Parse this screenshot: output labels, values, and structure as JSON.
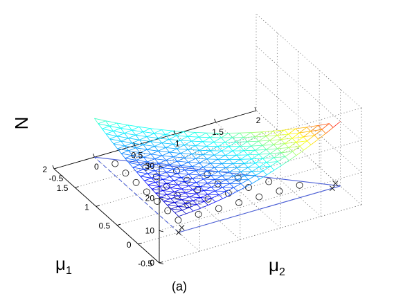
{
  "chart_data": {
    "type": "surface3d",
    "xlabel": "μ",
    "xlabel_sub": "1",
    "ylabel": "μ",
    "ylabel_sub": "2",
    "zlabel": "N",
    "caption": "(a)",
    "x_ticks": [
      "-0.5",
      "0",
      "0.5",
      "1",
      "1.5",
      "2"
    ],
    "y_ticks": [
      "-0.5",
      "0",
      "0.5",
      "1",
      "1.5",
      "2"
    ],
    "z_ticks": [
      "0",
      "10",
      "20",
      "30"
    ],
    "xlim": [
      -0.5,
      2
    ],
    "ylim": [
      -0.5,
      2
    ],
    "zlim": [
      0,
      30
    ],
    "grid": true,
    "surface": {
      "colormap": "jet",
      "domain": "triangle 0 <= mu1 <= 2, 0 <= mu2 <= 2 - mu1",
      "corner_values": [
        {
          "mu1": 0,
          "mu2": 0,
          "N": 5
        },
        {
          "mu1": 0,
          "mu2": 2,
          "N": 20
        },
        {
          "mu1": 2,
          "mu2": 0,
          "N": 12
        }
      ]
    },
    "circle_points": [
      {
        "mu1": 0.25,
        "mu2": 0.125
      },
      {
        "mu1": 0.25,
        "mu2": 0.375
      },
      {
        "mu1": 0.25,
        "mu2": 0.625
      },
      {
        "mu1": 0.25,
        "mu2": 0.875
      },
      {
        "mu1": 0.25,
        "mu2": 1.125
      },
      {
        "mu1": 0.25,
        "mu2": 1.375
      },
      {
        "mu1": 0.25,
        "mu2": 1.625
      },
      {
        "mu1": 0.5,
        "mu2": 0.125
      },
      {
        "mu1": 0.5,
        "mu2": 0.375
      },
      {
        "mu1": 0.5,
        "mu2": 0.625
      },
      {
        "mu1": 0.5,
        "mu2": 0.875
      },
      {
        "mu1": 0.5,
        "mu2": 1.125
      },
      {
        "mu1": 0.5,
        "mu2": 1.375
      },
      {
        "mu1": 0.75,
        "mu2": 0.125
      },
      {
        "mu1": 0.75,
        "mu2": 0.375
      },
      {
        "mu1": 0.75,
        "mu2": 0.625
      },
      {
        "mu1": 0.75,
        "mu2": 0.875
      },
      {
        "mu1": 0.75,
        "mu2": 1.125
      },
      {
        "mu1": 1.0,
        "mu2": 0.125
      },
      {
        "mu1": 1.0,
        "mu2": 0.375
      },
      {
        "mu1": 1.0,
        "mu2": 0.625
      },
      {
        "mu1": 1.0,
        "mu2": 0.875
      },
      {
        "mu1": 1.25,
        "mu2": 0.125
      },
      {
        "mu1": 1.25,
        "mu2": 0.375
      },
      {
        "mu1": 1.25,
        "mu2": 0.625
      },
      {
        "mu1": 1.5,
        "mu2": 0.125
      },
      {
        "mu1": 1.5,
        "mu2": 0.375
      },
      {
        "mu1": 1.75,
        "mu2": 0.125
      }
    ],
    "cross_points": [
      {
        "mu1": 0,
        "mu2": 0
      },
      {
        "mu1": 0.08,
        "mu2": 0.08
      },
      {
        "mu1": 0,
        "mu2": 1.9
      },
      {
        "mu1": 0.08,
        "mu2": 1.98
      }
    ],
    "triangle_outline": [
      {
        "mu1": 0,
        "mu2": 0
      },
      {
        "mu1": 0,
        "mu2": 2
      },
      {
        "mu1": 2,
        "mu2": 0
      }
    ],
    "colors": {
      "outline": "#4a5ed6",
      "markers": "#222222",
      "grid": "#7f7f7f"
    }
  }
}
